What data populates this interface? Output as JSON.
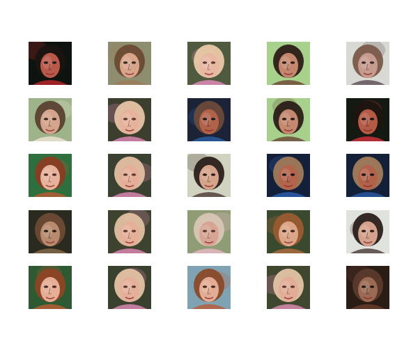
{
  "grid": {
    "rows": 5,
    "cols": 5,
    "tiles": [
      {
        "palette": {
          "bg": "#0e130f",
          "hair": "#1a1410",
          "skin": "#b8594a",
          "accent": "#c1272d",
          "feature": "#1a1a1a"
        }
      },
      {
        "palette": {
          "bg": "#8e8d6f",
          "hair": "#6b4a33",
          "skin": "#d8a58a",
          "accent": "#9b7a55",
          "feature": "#3b2a22"
        }
      },
      {
        "palette": {
          "bg": "#4f5a3e",
          "hair": "#e9c9a7",
          "skin": "#e9b7a2",
          "accent": "#e88fbf",
          "feature": "#5a3b30"
        }
      },
      {
        "palette": {
          "bg": "#a8d18b",
          "hair": "#2c1e18",
          "skin": "#c4876e",
          "accent": "#6b4433",
          "feature": "#2b1b16"
        }
      },
      {
        "palette": {
          "bg": "#d7d9d2",
          "hair": "#7a5a49",
          "skin": "#c79b8e",
          "accent": "#5c4a55",
          "feature": "#3a2a2a"
        }
      },
      {
        "palette": {
          "bg": "#9fb38a",
          "hair": "#5a4232",
          "skin": "#d5a48d",
          "accent": "#ede5d6",
          "feature": "#3a2a22"
        }
      },
      {
        "palette": {
          "bg": "#3c3f2e",
          "hair": "#e6c3a6",
          "skin": "#e6b29b",
          "accent": "#e48ab8",
          "feature": "#5a3a2f"
        }
      },
      {
        "palette": {
          "bg": "#1c2336",
          "hair": "#6c4a3b",
          "skin": "#b3624a",
          "accent": "#2a5fa8",
          "feature": "#1a1a1a"
        }
      },
      {
        "palette": {
          "bg": "#a6d08c",
          "hair": "#2a1d17",
          "skin": "#c58970",
          "accent": "#6a4535",
          "feature": "#2a1a15"
        }
      },
      {
        "palette": {
          "bg": "#141a12",
          "hair": "#1c1410",
          "skin": "#b45b46",
          "accent": "#d7313c",
          "feature": "#151515"
        }
      },
      {
        "palette": {
          "bg": "#2f6e3d",
          "hair": "#8a3d22",
          "skin": "#e7b29b",
          "accent": "#bb5a34",
          "feature": "#4a2a22"
        }
      },
      {
        "palette": {
          "bg": "#3b4130",
          "hair": "#e3bfa2",
          "skin": "#e4ae98",
          "accent": "#e48ab8",
          "feature": "#5a3a2f"
        }
      },
      {
        "palette": {
          "bg": "#cfd3c0",
          "hair": "#2b201b",
          "skin": "#d6a38b",
          "accent": "#4a3a33",
          "feature": "#2a1a15"
        }
      },
      {
        "palette": {
          "bg": "#14203a",
          "hair": "#a07a5a",
          "skin": "#b4644c",
          "accent": "#2b5fb0",
          "feature": "#151515"
        }
      },
      {
        "palette": {
          "bg": "#132038",
          "hair": "#a27c5a",
          "skin": "#b2624a",
          "accent": "#2a5aa8",
          "feature": "#151515"
        }
      },
      {
        "palette": {
          "bg": "#2a2a1f",
          "hair": "#6b4a35",
          "skin": "#b88a6e",
          "accent": "#8a6b4c",
          "feature": "#2a1c15"
        }
      },
      {
        "palette": {
          "bg": "#3d432f",
          "hair": "#e2c0a2",
          "skin": "#e5af98",
          "accent": "#e38ab7",
          "feature": "#5a3a2f"
        }
      },
      {
        "palette": {
          "bg": "#8f9c76",
          "hair": "#d8c6b4",
          "skin": "#d8a594",
          "accent": "#e8b9c8",
          "feature": "#5a3a33"
        }
      },
      {
        "palette": {
          "bg": "#3a4a2e",
          "hair": "#9a5b32",
          "skin": "#dca588",
          "accent": "#b36b3e",
          "feature": "#3b2820"
        }
      },
      {
        "palette": {
          "bg": "#e0e2de",
          "hair": "#2a1f1b",
          "skin": "#d4a28c",
          "accent": "#4a3a35",
          "feature": "#2a1a15"
        }
      },
      {
        "palette": {
          "bg": "#2e5a33",
          "hair": "#8e4424",
          "skin": "#e5ae95",
          "accent": "#bd5c33",
          "feature": "#4a2a22"
        }
      },
      {
        "palette": {
          "bg": "#3a402e",
          "hair": "#e4c1a3",
          "skin": "#e5b09a",
          "accent": "#e48bb8",
          "feature": "#5a3a2f"
        }
      },
      {
        "palette": {
          "bg": "#7fa3b3",
          "hair": "#8b4a2a",
          "skin": "#e3ad95",
          "accent": "#b85a35",
          "feature": "#4a2a22"
        }
      },
      {
        "palette": {
          "bg": "#40472f",
          "hair": "#e2c4a4",
          "skin": "#e2ac96",
          "accent": "#e28db6",
          "feature": "#5a3a2f"
        }
      },
      {
        "palette": {
          "bg": "#2a1d16",
          "hair": "#5a3a2b",
          "skin": "#9a6a55",
          "accent": "#6b3c2e",
          "feature": "#221612"
        }
      }
    ]
  }
}
